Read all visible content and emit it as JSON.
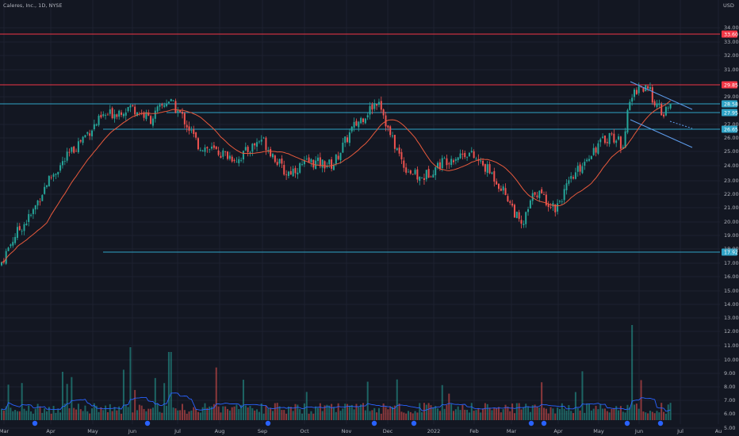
{
  "header": {
    "title": "Caleres, Inc., 1D, NYSE"
  },
  "price_axis": {
    "currency": "USD"
  },
  "chart_data": {
    "type": "candlestick",
    "title": "Caleres, Inc., 1D, NYSE",
    "ylabel": "USD",
    "ylim": [
      5.2,
      36.4
    ],
    "scale": "log",
    "y_ticks": [
      "34.00",
      "33.00",
      "32.00",
      "31.00",
      "29.00",
      "27.00",
      "26.00",
      "25.00",
      "24.00",
      "23.00",
      "22.00",
      "21.00",
      "20.00",
      "19.00",
      "18.00",
      "17.00",
      "16.00",
      "15.00",
      "14.00",
      "13.00",
      "12.00",
      "11.00",
      "10.00",
      "9.00",
      "8.00",
      "7.00",
      "6.00",
      "5.00"
    ],
    "x_ticks": [
      "Mar",
      "Apr",
      "May",
      "Jun",
      "Jul",
      "Aug",
      "Sep",
      "Oct",
      "Nov",
      "Dec",
      "2022",
      "Feb",
      "Mar",
      "Apr",
      "May",
      "Jun",
      "Jul",
      "Au"
    ],
    "horizontal_levels": [
      {
        "value": 33.6,
        "label": "33.60",
        "color": "#f23645"
      },
      {
        "value": 29.85,
        "label": "29.85",
        "color": "#f23645"
      },
      {
        "value": 28.58,
        "label": "28.58",
        "color": "#2fa3c6"
      },
      {
        "value": 27.95,
        "label": "27.95",
        "color": "#2fa3c6"
      },
      {
        "value": 26.65,
        "label": "26.65",
        "color": "#2fa3c6"
      },
      {
        "value": 17.92,
        "label": "17.92",
        "color": "#2fa3c6"
      }
    ],
    "colors": {
      "up": "#26a69a",
      "down": "#ef5350",
      "ma": "#e8593c",
      "volume_ma": "#2962ff",
      "channel": "#5d9cec",
      "background": "#131722"
    },
    "volume_note": "Volume histogram with moving average overlay; earnings markers along bottom"
  }
}
